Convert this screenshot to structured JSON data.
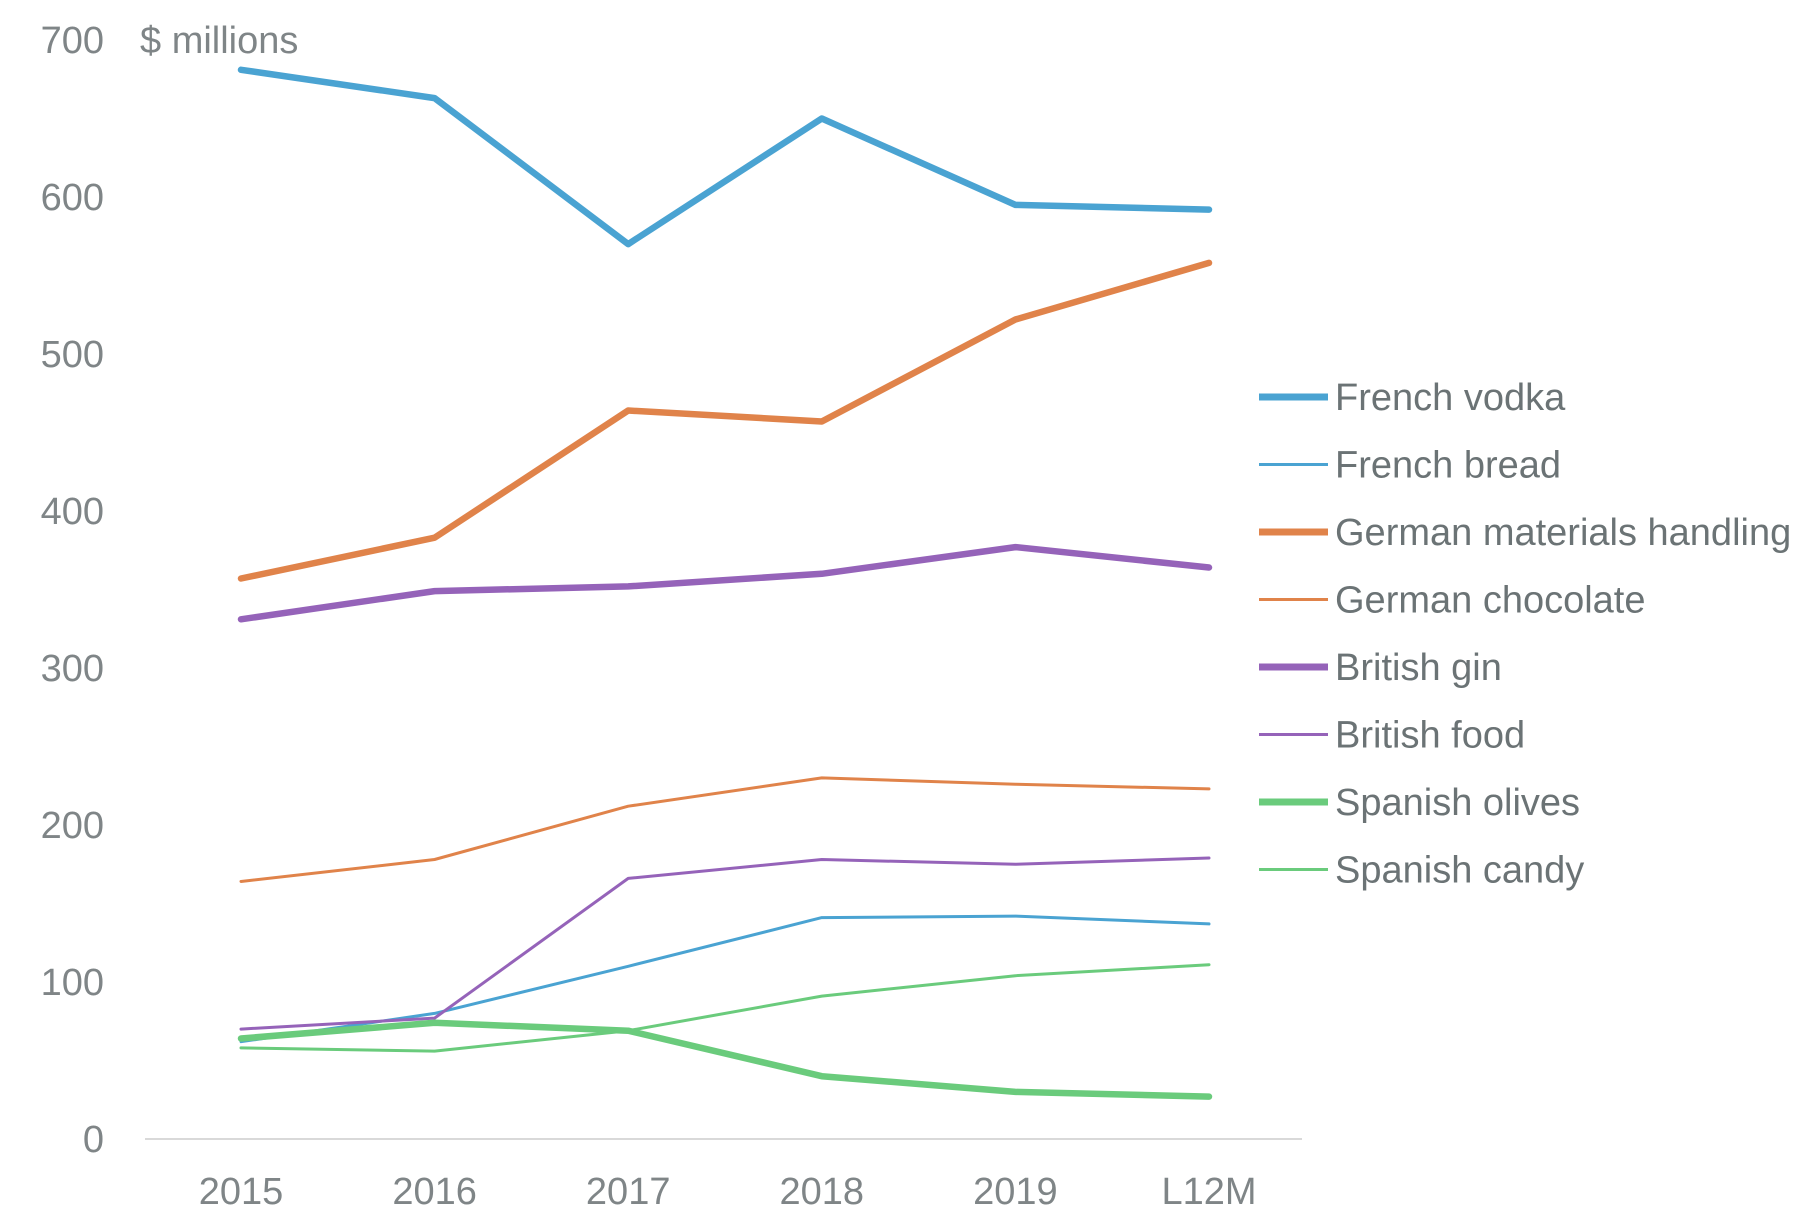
{
  "chart_data": {
    "type": "line",
    "title": "",
    "unit_label": "$ millions",
    "xlabel": "",
    "ylabel": "$ millions",
    "categories": [
      "2015",
      "2016",
      "2017",
      "2018",
      "2019",
      "L12M"
    ],
    "ylim": [
      0,
      700
    ],
    "yticks": [
      0,
      100,
      200,
      300,
      400,
      500,
      600,
      700
    ],
    "grid": false,
    "legend_position": "right",
    "series": [
      {
        "name": "French vodka",
        "color": "#4aa3d2",
        "weight": "thick",
        "values": [
          681,
          663,
          570,
          650,
          595,
          592
        ]
      },
      {
        "name": "French bread",
        "color": "#4aa3d2",
        "weight": "thin",
        "values": [
          62,
          80,
          110,
          141,
          142,
          137
        ]
      },
      {
        "name": "German materials handling",
        "color": "#e0834a",
        "weight": "thick",
        "values": [
          357,
          383,
          464,
          457,
          522,
          558
        ]
      },
      {
        "name": "German chocolate",
        "color": "#e0834a",
        "weight": "thin",
        "values": [
          164,
          178,
          212,
          230,
          226,
          223
        ]
      },
      {
        "name": "British gin",
        "color": "#9563b9",
        "weight": "thick",
        "values": [
          331,
          349,
          352,
          360,
          377,
          364
        ]
      },
      {
        "name": "British food",
        "color": "#9563b9",
        "weight": "thin",
        "values": [
          70,
          77,
          166,
          178,
          175,
          179
        ]
      },
      {
        "name": "Spanish olives",
        "color": "#6acb7c",
        "weight": "thick",
        "values": [
          64,
          74,
          69,
          40,
          30,
          27
        ]
      },
      {
        "name": "Spanish candy",
        "color": "#6acb7c",
        "weight": "thin",
        "values": [
          58,
          56,
          69,
          91,
          104,
          111
        ]
      }
    ]
  }
}
